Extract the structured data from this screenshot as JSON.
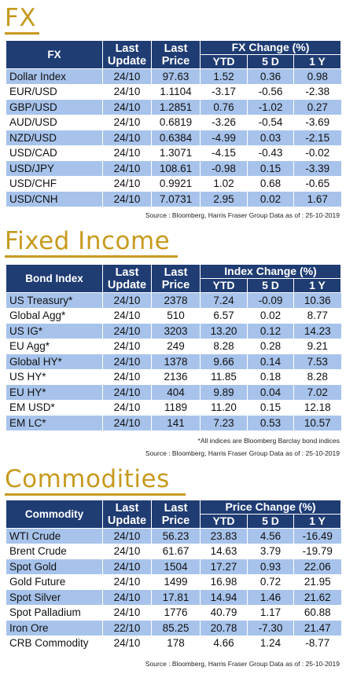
{
  "fx": {
    "title": "FX",
    "headers": {
      "name": "FX",
      "update": "Last Update",
      "price": "Last Price",
      "group": "FX Change (%)",
      "ytd": "YTD",
      "d5": "5 D",
      "y1": "1 Y"
    },
    "rows": [
      [
        "Dollar Index",
        "24/10",
        "97.63",
        "1.52",
        "0.36",
        "0.98"
      ],
      [
        "EUR/USD",
        "24/10",
        "1.1104",
        "-3.17",
        "-0.56",
        "-2.38"
      ],
      [
        "GBP/USD",
        "24/10",
        "1.2851",
        "0.76",
        "-1.02",
        "0.27"
      ],
      [
        "AUD/USD",
        "24/10",
        "0.6819",
        "-3.26",
        "-0.54",
        "-3.69"
      ],
      [
        "NZD/USD",
        "24/10",
        "0.6384",
        "-4.99",
        "0.03",
        "-2.15"
      ],
      [
        "USD/CAD",
        "24/10",
        "1.3071",
        "-4.15",
        "-0.43",
        "-0.02"
      ],
      [
        "USD/JPY",
        "24/10",
        "108.61",
        "-0.98",
        "0.15",
        "-3.39"
      ],
      [
        "USD/CHF",
        "24/10",
        "0.9921",
        "1.02",
        "0.68",
        "-0.65"
      ],
      [
        "USD/CNH",
        "24/10",
        "7.0731",
        "2.95",
        "0.02",
        "1.67"
      ]
    ],
    "source": "Source : Bloomberg, Harris Fraser Group Data as of : 25-10-2019"
  },
  "fixed_income": {
    "title": "Fixed Income",
    "headers": {
      "name": "Bond Index",
      "update": "Last Update",
      "price": "Last Price",
      "group": "Index Change (%)",
      "ytd": "YTD",
      "d5": "5 D",
      "y1": "1 Y"
    },
    "rows": [
      [
        "US Treasury*",
        "24/10",
        "2378",
        "7.24",
        "-0.09",
        "10.36"
      ],
      [
        "Global Agg*",
        "24/10",
        "510",
        "6.57",
        "0.02",
        "8.77"
      ],
      [
        "US IG*",
        "24/10",
        "3203",
        "13.20",
        "0.12",
        "14.23"
      ],
      [
        "EU Agg*",
        "24/10",
        "249",
        "8.28",
        "0.28",
        "9.21"
      ],
      [
        "Global HY*",
        "24/10",
        "1378",
        "9.66",
        "0.14",
        "7.53"
      ],
      [
        "US HY*",
        "24/10",
        "2136",
        "11.85",
        "0.18",
        "8.28"
      ],
      [
        "EU HY*",
        "24/10",
        "404",
        "9.89",
        "0.04",
        "7.02"
      ],
      [
        "EM USD*",
        "24/10",
        "1189",
        "11.20",
        "0.15",
        "12.18"
      ],
      [
        "EM LC*",
        "24/10",
        "141",
        "7.23",
        "0.53",
        "10.57"
      ]
    ],
    "footnote": "*All indices are Bloomberg Barclay bond indices",
    "source": "Source : Bloomberg, Harris Fraser Group Data as of : 25-10-2019"
  },
  "commodities": {
    "title": "Commodities",
    "headers": {
      "name": "Commodity",
      "update": "Last Update",
      "price": "Last Price",
      "group": "Price Change (%)",
      "ytd": "YTD",
      "d5": "5 D",
      "y1": "1 Y"
    },
    "rows": [
      [
        "WTI Crude",
        "24/10",
        "56.23",
        "23.83",
        "4.56",
        "-16.49"
      ],
      [
        "Brent Crude",
        "24/10",
        "61.67",
        "14.63",
        "3.79",
        "-19.79"
      ],
      [
        "Spot Gold",
        "24/10",
        "1504",
        "17.27",
        "0.93",
        "22.06"
      ],
      [
        "Gold Future",
        "24/10",
        "1499",
        "16.98",
        "0.72",
        "21.95"
      ],
      [
        "Spot Silver",
        "24/10",
        "17.81",
        "14.94",
        "1.46",
        "21.62"
      ],
      [
        "Spot Palladium",
        "24/10",
        "1776",
        "40.79",
        "1.17",
        "60.88"
      ],
      [
        "Iron Ore",
        "22/10",
        "85.25",
        "20.78",
        "-7.30",
        "21.47"
      ],
      [
        "CRB Commodity",
        "24/10",
        "178",
        "4.66",
        "1.24",
        "-8.77"
      ]
    ],
    "source": "Source : Bloomberg, Harris Fraser Group Data as of : 25-10-2019"
  }
}
